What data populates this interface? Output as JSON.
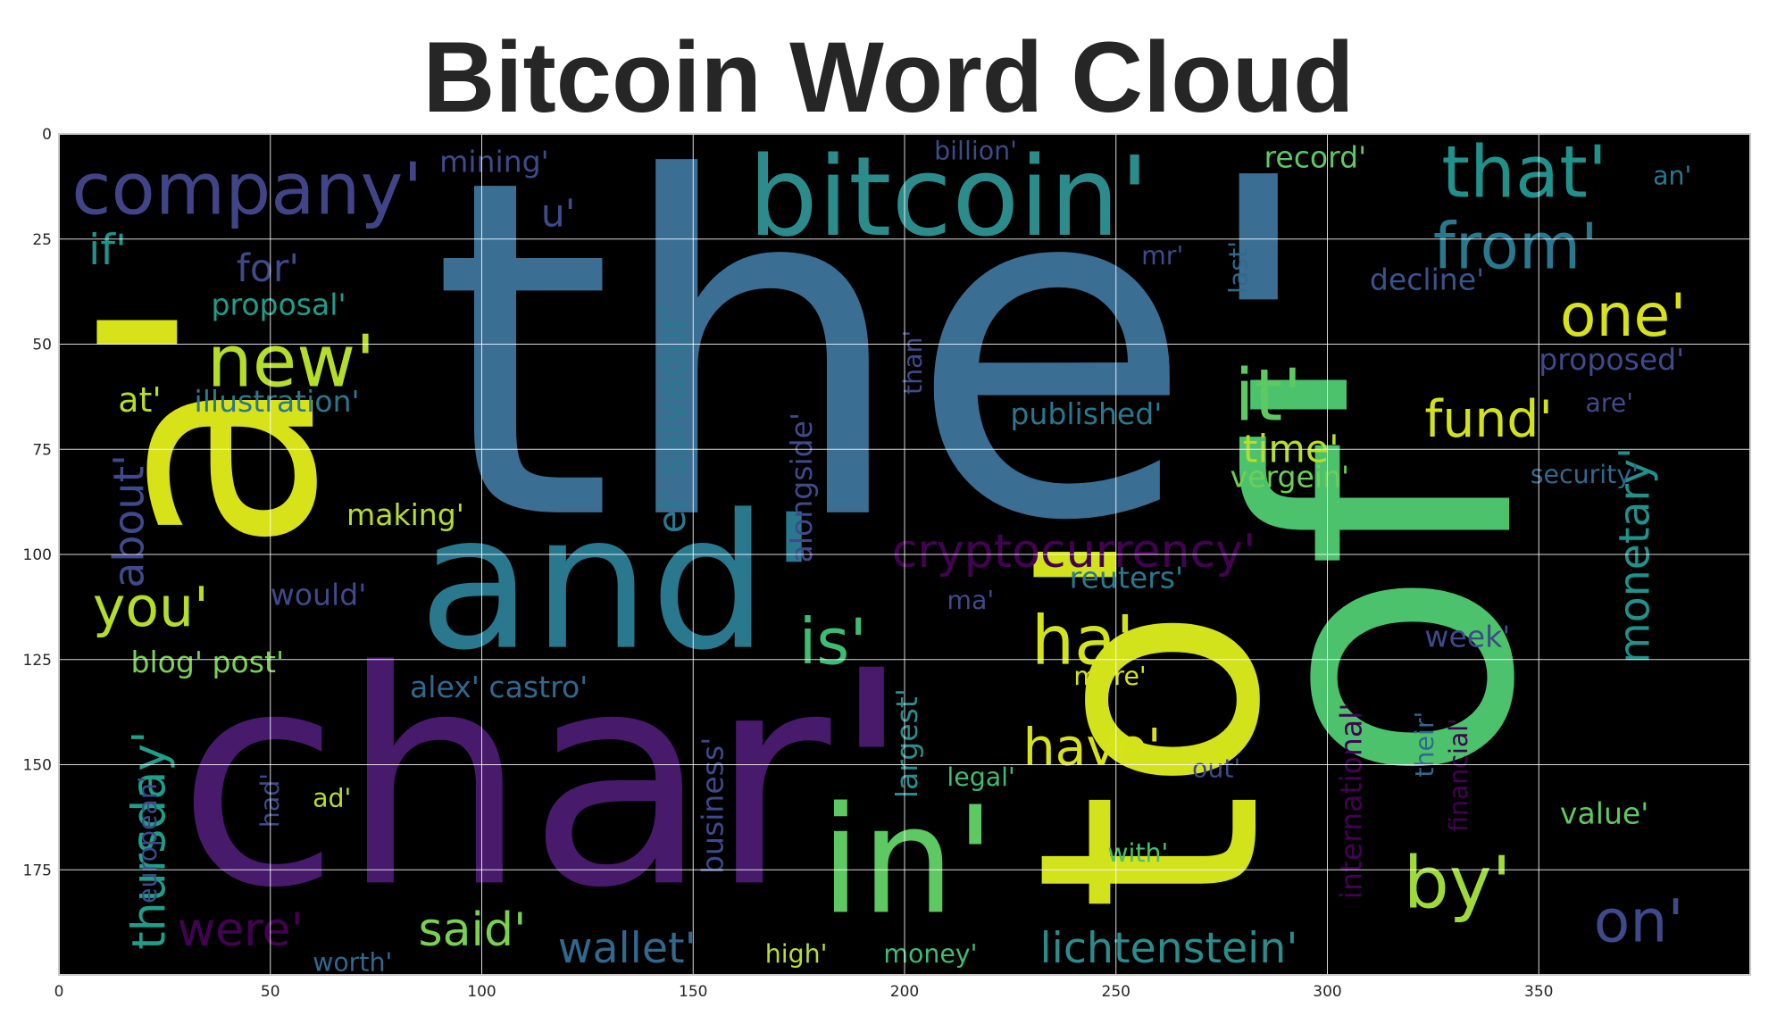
{
  "chart_data": {
    "type": "image",
    "title": "Bitcoin Word Cloud",
    "xlim": [
      0,
      400
    ],
    "ylim": [
      200,
      0
    ],
    "x_ticks": [
      0,
      50,
      100,
      150,
      200,
      250,
      300,
      350
    ],
    "y_ticks": [
      0,
      25,
      50,
      75,
      100,
      125,
      150,
      175
    ],
    "grid": true,
    "background": "#000000",
    "colormap": "viridis",
    "words": [
      {
        "text": "the'",
        "x": 88,
        "y": 90,
        "size": 110,
        "color": "#3b6e93",
        "rotate": 0
      },
      {
        "text": "char'",
        "x": 28,
        "y": 178,
        "size": 70,
        "color": "#481a6c",
        "rotate": 0
      },
      {
        "text": "to'",
        "x": 283,
        "y": 185,
        "size": 72,
        "color": "#d2e21b",
        "rotate": -90
      },
      {
        "text": "of'",
        "x": 343,
        "y": 155,
        "size": 84,
        "color": "#4cc26c",
        "rotate": -90
      },
      {
        "text": "a'",
        "x": 60,
        "y": 100,
        "size": 70,
        "color": "#d8e219",
        "rotate": -90
      },
      {
        "text": "and'",
        "x": 85,
        "y": 122,
        "size": 44,
        "color": "#2a788e",
        "rotate": 0
      },
      {
        "text": "bitcoin'",
        "x": 163,
        "y": 24,
        "size": 26,
        "color": "#2c8c8c",
        "rotate": 0
      },
      {
        "text": "in'",
        "x": 180,
        "y": 185,
        "size": 35,
        "color": "#5ec962",
        "rotate": 0
      },
      {
        "text": "company'",
        "x": 3,
        "y": 19,
        "size": 17,
        "color": "#414487",
        "rotate": 0
      },
      {
        "text": "new'",
        "x": 35,
        "y": 60,
        "size": 17,
        "color": "#b5de2b",
        "rotate": 0
      },
      {
        "text": "that'",
        "x": 327,
        "y": 15,
        "size": 17,
        "color": "#21918c",
        "rotate": 0
      },
      {
        "text": "from'",
        "x": 325,
        "y": 32,
        "size": 15,
        "color": "#2a788e",
        "rotate": 0
      },
      {
        "text": "one'",
        "x": 355,
        "y": 48,
        "size": 14,
        "color": "#d8e219",
        "rotate": 0
      },
      {
        "text": "it'",
        "x": 278,
        "y": 68,
        "size": 17,
        "color": "#5ec962",
        "rotate": 0
      },
      {
        "text": "fund'",
        "x": 323,
        "y": 72,
        "size": 12,
        "color": "#d2e21b",
        "rotate": 0
      },
      {
        "text": "time'",
        "x": 280,
        "y": 78,
        "size": 9,
        "color": "#b5de2b",
        "rotate": 0
      },
      {
        "text": "cryptocurrency'",
        "x": 197,
        "y": 103,
        "size": 11,
        "color": "#440154",
        "rotate": 0
      },
      {
        "text": "ha'",
        "x": 230,
        "y": 126,
        "size": 16,
        "color": "#d2e21b",
        "rotate": 0
      },
      {
        "text": "is'",
        "x": 175,
        "y": 126,
        "size": 15,
        "color": "#3fbc73",
        "rotate": 0
      },
      {
        "text": "you'",
        "x": 8,
        "y": 117,
        "size": 13,
        "color": "#b5de2b",
        "rotate": 0
      },
      {
        "text": "by'",
        "x": 318,
        "y": 184,
        "size": 17,
        "color": "#a0da39",
        "rotate": 0
      },
      {
        "text": "on'",
        "x": 363,
        "y": 192,
        "size": 14,
        "color": "#3e4a89",
        "rotate": 0
      },
      {
        "text": "were'",
        "x": 28,
        "y": 193,
        "size": 11,
        "color": "#440154",
        "rotate": 0
      },
      {
        "text": "said'",
        "x": 85,
        "y": 193,
        "size": 11,
        "color": "#7ad151",
        "rotate": 0
      },
      {
        "text": "wallet'",
        "x": 118,
        "y": 197,
        "size": 10,
        "color": "#31688e",
        "rotate": 0
      },
      {
        "text": "lichtenstein'",
        "x": 232,
        "y": 197,
        "size": 10,
        "color": "#2c8c8c",
        "rotate": 0
      },
      {
        "text": "have'",
        "x": 228,
        "y": 150,
        "size": 12,
        "color": "#d8e219",
        "rotate": 0
      },
      {
        "text": "monetary'",
        "x": 376,
        "y": 126,
        "size": 10,
        "color": "#21918c",
        "rotate": -90
      },
      {
        "text": "thursday'",
        "x": 25,
        "y": 194,
        "size": 11,
        "color": "#1f9e89",
        "rotate": -90
      },
      {
        "text": "about'",
        "x": 20,
        "y": 108,
        "size": 10,
        "color": "#3e4a89",
        "rotate": -90
      },
      {
        "text": "el' salvador'",
        "x": 148,
        "y": 95,
        "size": 9,
        "color": "#2a788e",
        "rotate": -90
      },
      {
        "text": "mining'",
        "x": 90,
        "y": 9,
        "size": 7,
        "color": "#3e4a89",
        "rotate": 0
      },
      {
        "text": "record'",
        "x": 285,
        "y": 8,
        "size": 7,
        "color": "#5ec962",
        "rotate": 0
      },
      {
        "text": "billion'",
        "x": 207,
        "y": 6,
        "size": 6,
        "color": "#3e4a89",
        "rotate": 0
      },
      {
        "text": "if'",
        "x": 7,
        "y": 31,
        "size": 10,
        "color": "#21918c",
        "rotate": 0
      },
      {
        "text": "for'",
        "x": 42,
        "y": 35,
        "size": 9,
        "color": "#3e4a89",
        "rotate": 0
      },
      {
        "text": "proposal'",
        "x": 36,
        "y": 43,
        "size": 7,
        "color": "#1f9e89",
        "rotate": 0
      },
      {
        "text": "at'",
        "x": 14,
        "y": 66,
        "size": 8,
        "color": "#b5de2b",
        "rotate": 0
      },
      {
        "text": "illustration'",
        "x": 32,
        "y": 66,
        "size": 7,
        "color": "#2a788e",
        "rotate": 0
      },
      {
        "text": "making'",
        "x": 68,
        "y": 93,
        "size": 7,
        "color": "#b5de2b",
        "rotate": 0
      },
      {
        "text": "would'",
        "x": 50,
        "y": 112,
        "size": 7,
        "color": "#3e4a89",
        "rotate": 0
      },
      {
        "text": "blog' post'",
        "x": 17,
        "y": 128,
        "size": 7,
        "color": "#7ad151",
        "rotate": 0
      },
      {
        "text": "alex' castro'",
        "x": 83,
        "y": 134,
        "size": 7,
        "color": "#31688e",
        "rotate": 0
      },
      {
        "text": "published'",
        "x": 225,
        "y": 69,
        "size": 7,
        "color": "#2a788e",
        "rotate": 0
      },
      {
        "text": "vergein'",
        "x": 277,
        "y": 84,
        "size": 7,
        "color": "#6ece58",
        "rotate": 0
      },
      {
        "text": "reuters'",
        "x": 239,
        "y": 108,
        "size": 7,
        "color": "#2a788e",
        "rotate": 0
      },
      {
        "text": "decline'",
        "x": 310,
        "y": 37,
        "size": 7,
        "color": "#3b528b",
        "rotate": 0
      },
      {
        "text": "proposed'",
        "x": 350,
        "y": 56,
        "size": 7,
        "color": "#3e4a89",
        "rotate": 0
      },
      {
        "text": "security'",
        "x": 348,
        "y": 83,
        "size": 6,
        "color": "#31688e",
        "rotate": 0
      },
      {
        "text": "week'",
        "x": 323,
        "y": 122,
        "size": 7,
        "color": "#3e4a89",
        "rotate": 0
      },
      {
        "text": "value'",
        "x": 355,
        "y": 164,
        "size": 7,
        "color": "#5ec962",
        "rotate": 0
      },
      {
        "text": "more'",
        "x": 240,
        "y": 131,
        "size": 6,
        "color": "#d8e219",
        "rotate": 0
      },
      {
        "text": "legal'",
        "x": 210,
        "y": 155,
        "size": 6,
        "color": "#3fbc73",
        "rotate": 0
      },
      {
        "text": "with'",
        "x": 248,
        "y": 173,
        "size": 6,
        "color": "#4ac16d",
        "rotate": 0
      },
      {
        "text": "money'",
        "x": 195,
        "y": 197,
        "size": 6,
        "color": "#3fbc73",
        "rotate": 0
      },
      {
        "text": "high'",
        "x": 167,
        "y": 197,
        "size": 6,
        "color": "#b5de2b",
        "rotate": 0
      },
      {
        "text": "worth'",
        "x": 60,
        "y": 199,
        "size": 6,
        "color": "#31688e",
        "rotate": 0
      },
      {
        "text": "ad'",
        "x": 60,
        "y": 160,
        "size": 6,
        "color": "#b5de2b",
        "rotate": 0
      },
      {
        "text": "ma'",
        "x": 210,
        "y": 113,
        "size": 6,
        "color": "#3e4a89",
        "rotate": 0
      },
      {
        "text": "u'",
        "x": 114,
        "y": 22,
        "size": 9,
        "color": "#3e4a89",
        "rotate": 0
      },
      {
        "text": "mr'",
        "x": 256,
        "y": 31,
        "size": 6,
        "color": "#3e4a89",
        "rotate": 0
      },
      {
        "text": "an'",
        "x": 377,
        "y": 12,
        "size": 6,
        "color": "#2a788e",
        "rotate": 0
      },
      {
        "text": "are'",
        "x": 361,
        "y": 66,
        "size": 6,
        "color": "#3e4a89",
        "rotate": 0
      },
      {
        "text": "international'",
        "x": 308,
        "y": 182,
        "size": 7,
        "color": "#440154",
        "rotate": -90
      },
      {
        "text": "business'",
        "x": 157,
        "y": 176,
        "size": 7,
        "color": "#3e4a89",
        "rotate": -90
      },
      {
        "text": "largest'",
        "x": 203,
        "y": 158,
        "size": 7,
        "color": "#2c8c8c",
        "rotate": -90
      },
      {
        "text": "alongside'",
        "x": 178,
        "y": 102,
        "size": 7,
        "color": "#3e4a89",
        "rotate": -90
      },
      {
        "text": "financial'",
        "x": 333,
        "y": 166,
        "size": 6,
        "color": "#440154",
        "rotate": -90
      },
      {
        "text": "their'",
        "x": 325,
        "y": 153,
        "size": 6,
        "color": "#31688e",
        "rotate": -90
      },
      {
        "text": "last'",
        "x": 281,
        "y": 38,
        "size": 6,
        "color": "#31688e",
        "rotate": -90
      },
      {
        "text": "than'",
        "x": 204,
        "y": 62,
        "size": 6,
        "color": "#3e4a89",
        "rotate": -90
      },
      {
        "text": "out'",
        "x": 268,
        "y": 153,
        "size": 6,
        "color": "#3e4a89",
        "rotate": 0
      },
      {
        "text": "european'",
        "x": 23,
        "y": 183,
        "size": 6,
        "color": "#3e4a89",
        "rotate": -90
      },
      {
        "text": "had'",
        "x": 52,
        "y": 165,
        "size": 6,
        "color": "#3e4a89",
        "rotate": -90
      }
    ]
  }
}
